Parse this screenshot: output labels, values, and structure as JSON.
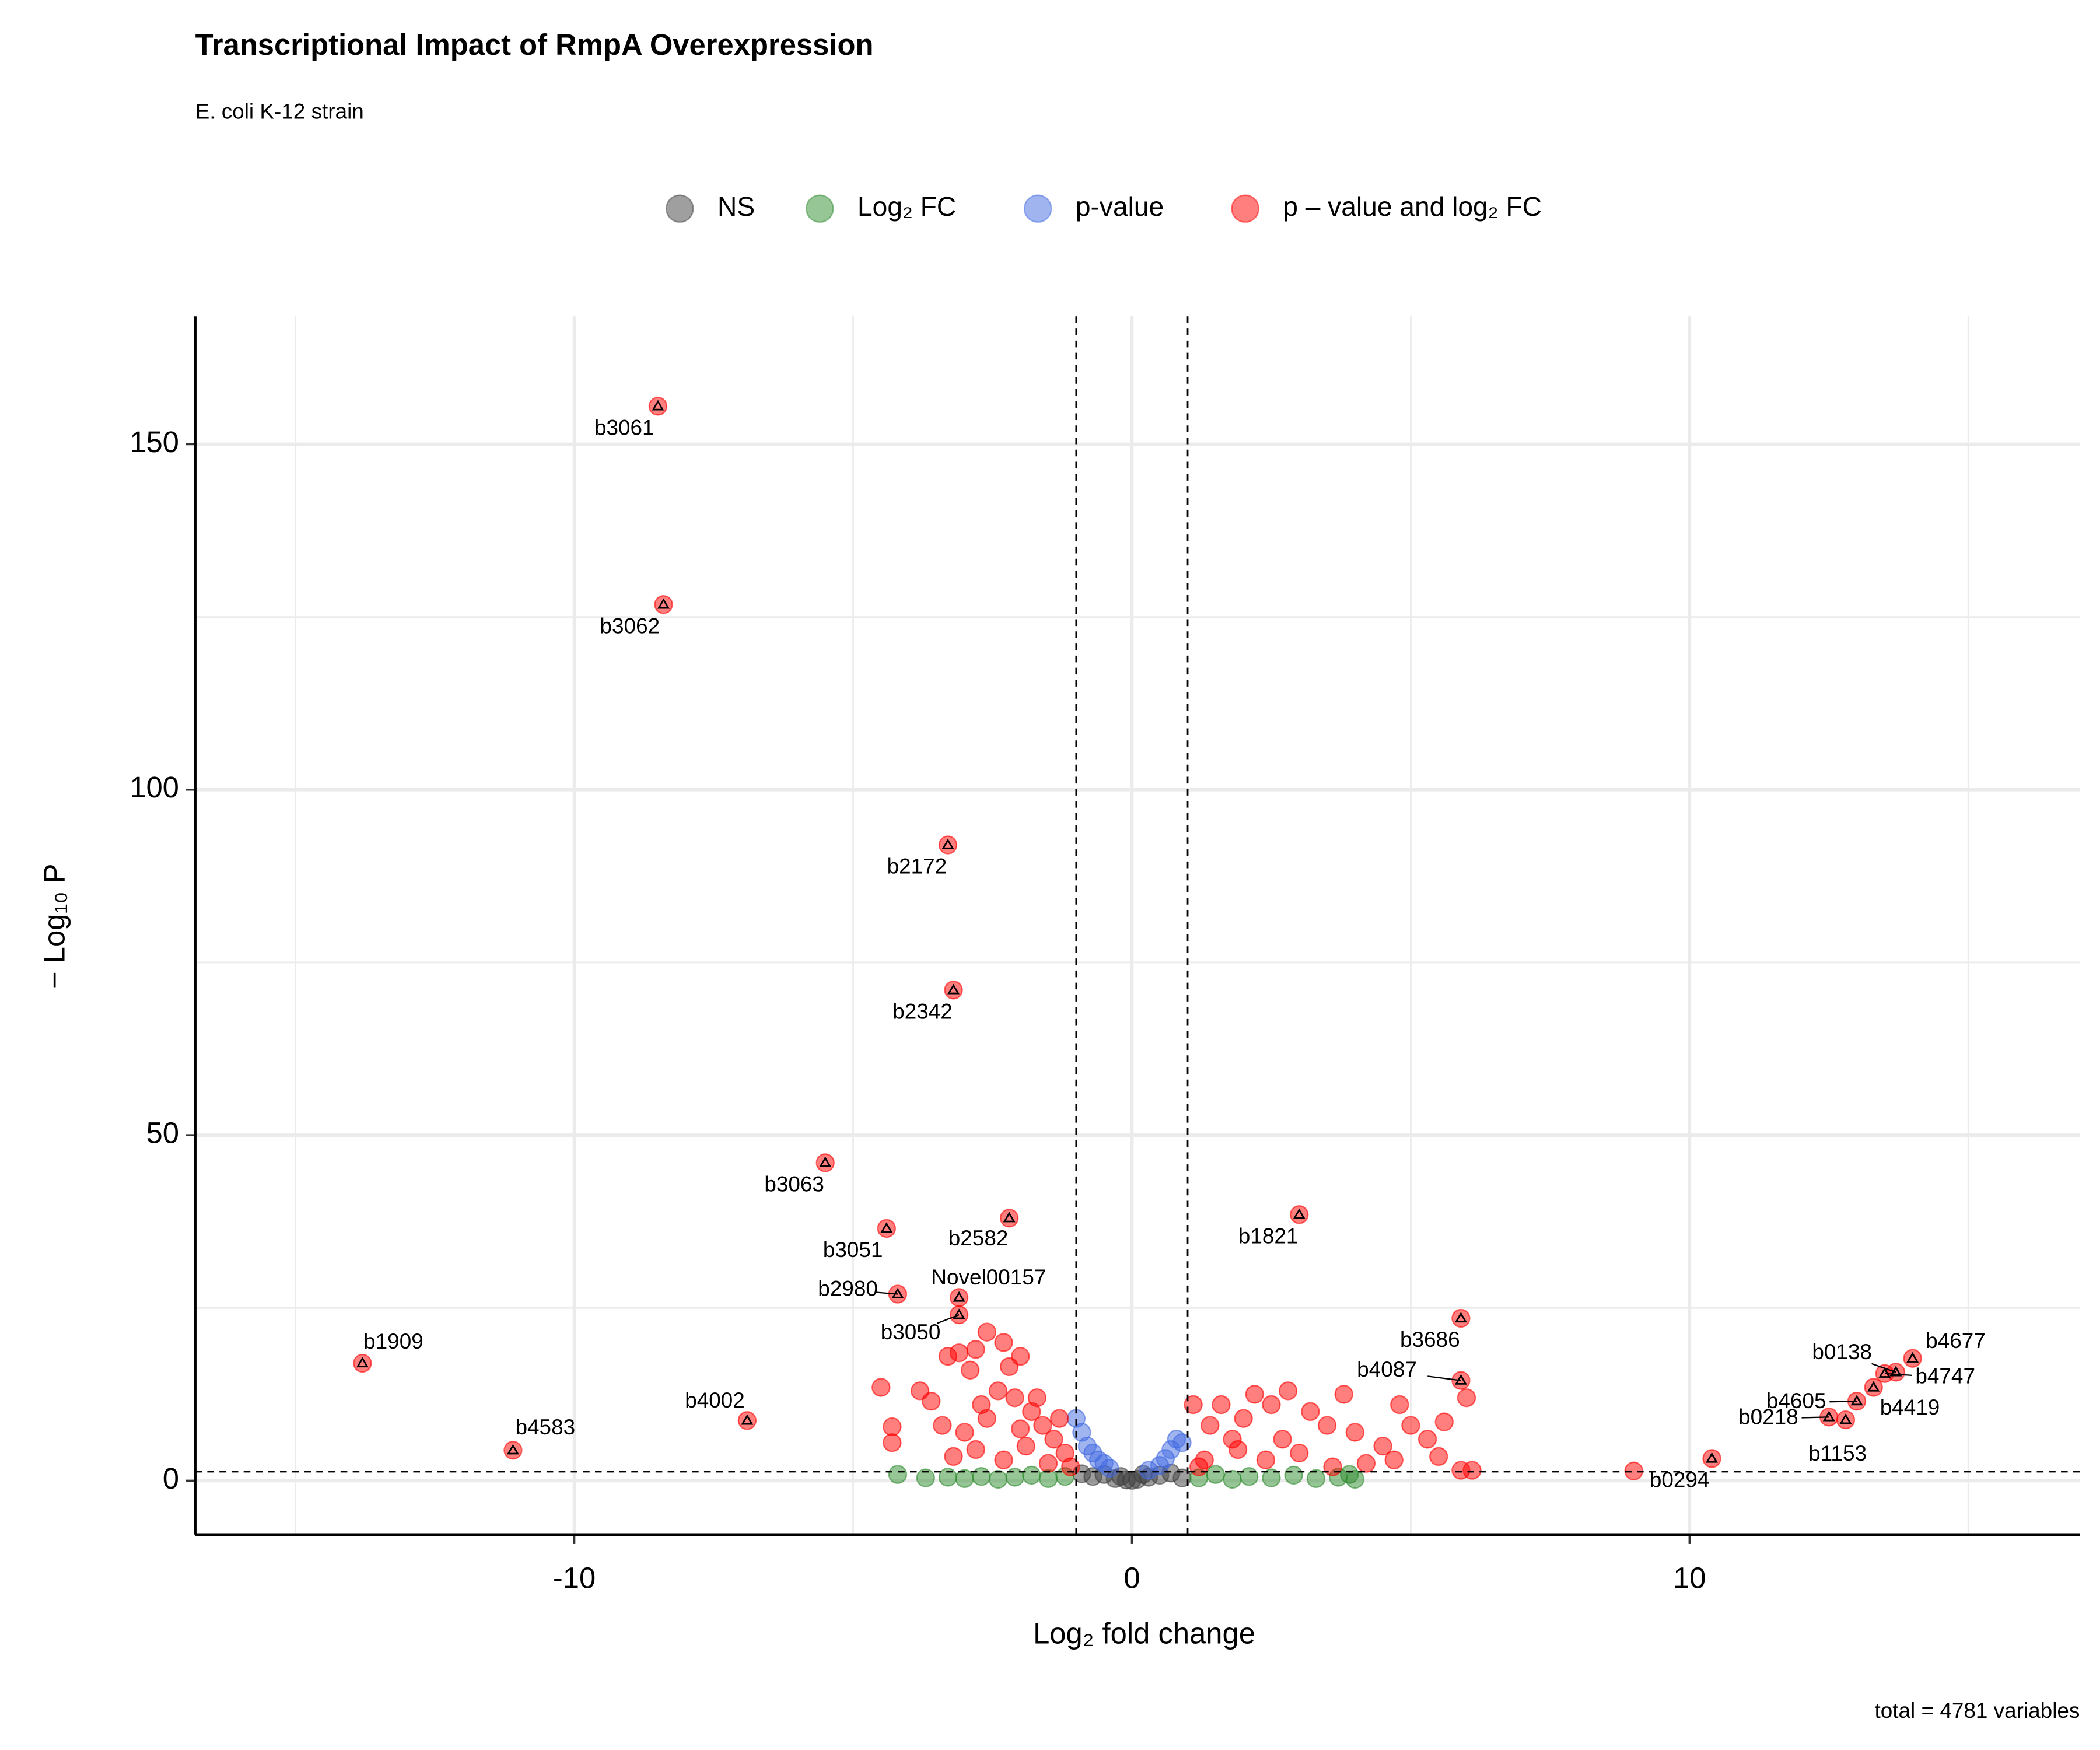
{
  "chart_data": {
    "type": "scatter",
    "title": "Transcriptional Impact of RmpA Overexpression",
    "subtitle": "E. coli K-12 strain",
    "x_label": "Log₂ fold change",
    "y_label": "− Log₁₀ P",
    "caption": "total = 4781 variables",
    "xlim": [
      -16.8,
      17
    ],
    "ylim": [
      -7.8,
      168.5
    ],
    "xticks": [
      -10,
      0,
      10
    ],
    "yticks": [
      0,
      50,
      100,
      150
    ],
    "x_minor_grid": [
      -15,
      -5,
      5,
      15
    ],
    "y_minor_grid": [
      25,
      75,
      125
    ],
    "grid": true,
    "legend_position": "top",
    "fc_cutoffs": [
      -1,
      1
    ],
    "p_cutoff": 1.3,
    "series": [
      {
        "name": "NS",
        "color": "#404040",
        "x": [
          -0.9,
          -0.7,
          -0.5,
          -0.3,
          -0.1,
          0,
          0.1,
          0.3,
          0.5,
          0.7,
          0.9,
          -0.2,
          0.2
        ],
        "values": [
          1,
          0.6,
          0.9,
          0.3,
          0.1,
          0.05,
          0.2,
          0.5,
          0.8,
          1.1,
          0.4,
          0.6,
          0.9
        ]
      },
      {
        "name": "Log₂ FC",
        "color": "#2e8b2e",
        "x": [
          -4.2,
          -3.7,
          -3.3,
          -3.0,
          -2.7,
          -2.4,
          -2.1,
          -1.8,
          -1.5,
          -1.2,
          1.2,
          1.5,
          1.8,
          2.1,
          2.5,
          2.9,
          3.3,
          3.7,
          4.0,
          3.9
        ],
        "values": [
          0.9,
          0.4,
          0.5,
          0.3,
          0.6,
          0.2,
          0.5,
          0.8,
          0.3,
          0.6,
          0.4,
          0.9,
          0.2,
          0.6,
          0.4,
          0.8,
          0.3,
          0.5,
          0.2,
          0.9
        ]
      },
      {
        "name": "p-value",
        "color": "#4169e1",
        "x": [
          -1.0,
          -0.9,
          -0.8,
          -0.7,
          -0.6,
          -0.5,
          -0.4,
          0.3,
          0.5,
          0.6,
          0.7,
          0.8,
          0.9
        ],
        "values": [
          9,
          7,
          5,
          4,
          3,
          2.5,
          1.8,
          1.5,
          2.2,
          3.2,
          4.5,
          6,
          5.5
        ]
      },
      {
        "name": "p – value and log₂ FC",
        "color": "#ff0000",
        "x": [
          -8.5,
          -8.4,
          -3.3,
          -3.2,
          -5.5,
          -4.4,
          -2.2,
          3.0,
          -4.2,
          -3.1,
          -3.1,
          5.9,
          -13.8,
          -6.9,
          -11.1,
          5.9,
          13.7,
          14.0,
          13.5,
          13.0,
          13.3,
          12.5,
          12.8,
          10.4,
          -4.5,
          -4.3,
          -4.3,
          -3.8,
          -3.6,
          -3.4,
          -3.3,
          -3.1,
          -2.9,
          -2.8,
          -2.6,
          -2.3,
          -2.2,
          -2.0,
          -2.4,
          -2.1,
          -1.8,
          -1.6,
          -1.4,
          -1.2,
          -2.6,
          -3.0,
          -2.8,
          -1.9,
          -2.3,
          -1.5,
          -1.1,
          -3.2,
          -2.0,
          -2.7,
          -1.3,
          -1.7,
          1.1,
          1.4,
          1.6,
          1.8,
          2.0,
          2.2,
          2.5,
          2.8,
          3.2,
          3.5,
          3.8,
          4.0,
          4.5,
          4.8,
          5.0,
          5.3,
          5.6,
          6.0,
          6.1,
          5.9,
          4.2,
          3.0,
          2.4,
          1.3,
          1.9,
          2.7,
          1.2,
          3.6,
          4.7,
          5.5,
          9.0
        ],
        "values": [
          155.5,
          126.8,
          92,
          71,
          46,
          36.5,
          38,
          38.5,
          27,
          26.5,
          24,
          23.5,
          17,
          8.7,
          4.4,
          14.5,
          15.7,
          17.7,
          15.5,
          11.5,
          13.5,
          9.2,
          8.8,
          3.2,
          13.5,
          7.8,
          5.5,
          13,
          11.5,
          8,
          18,
          18.5,
          16,
          19,
          21.5,
          20,
          16.5,
          18,
          13,
          12,
          10,
          8,
          6,
          4,
          9,
          7,
          4.5,
          5,
          3,
          2.5,
          2,
          3.5,
          7.5,
          11,
          9,
          12,
          11,
          8,
          11,
          6,
          9,
          12.5,
          11,
          13,
          10,
          8,
          12.5,
          7,
          5,
          11,
          8,
          6,
          8.5,
          12,
          1.5,
          1.5,
          2.5,
          4,
          3,
          3,
          4.5,
          6,
          2,
          2,
          3,
          3.5,
          1.4
        ],
        "labels": [
          "b3061",
          "b3062",
          "b2172",
          "b2342",
          "b3063",
          "b3051",
          "b2582",
          "b1821",
          "b2980",
          "Novel00157",
          "b3050",
          "b3686",
          "b1909",
          "b4002",
          "b4583",
          "b4087",
          "b0138",
          "b4677",
          "b4747",
          "b4605",
          "b4419",
          "b0218",
          "b1153",
          "b0294",
          null,
          null,
          null,
          null,
          null,
          null,
          null,
          null,
          null,
          null,
          null,
          null,
          null,
          null,
          null,
          null,
          null,
          null,
          null,
          null,
          null,
          null,
          null,
          null,
          null,
          null,
          null,
          null,
          null,
          null,
          null,
          null,
          null,
          null,
          null,
          null,
          null,
          null,
          null,
          null,
          null,
          null,
          null,
          null,
          null,
          null,
          null,
          null,
          null,
          null,
          null,
          null,
          null,
          null,
          null,
          null,
          null,
          null,
          null,
          null,
          null,
          null,
          null
        ]
      }
    ]
  }
}
